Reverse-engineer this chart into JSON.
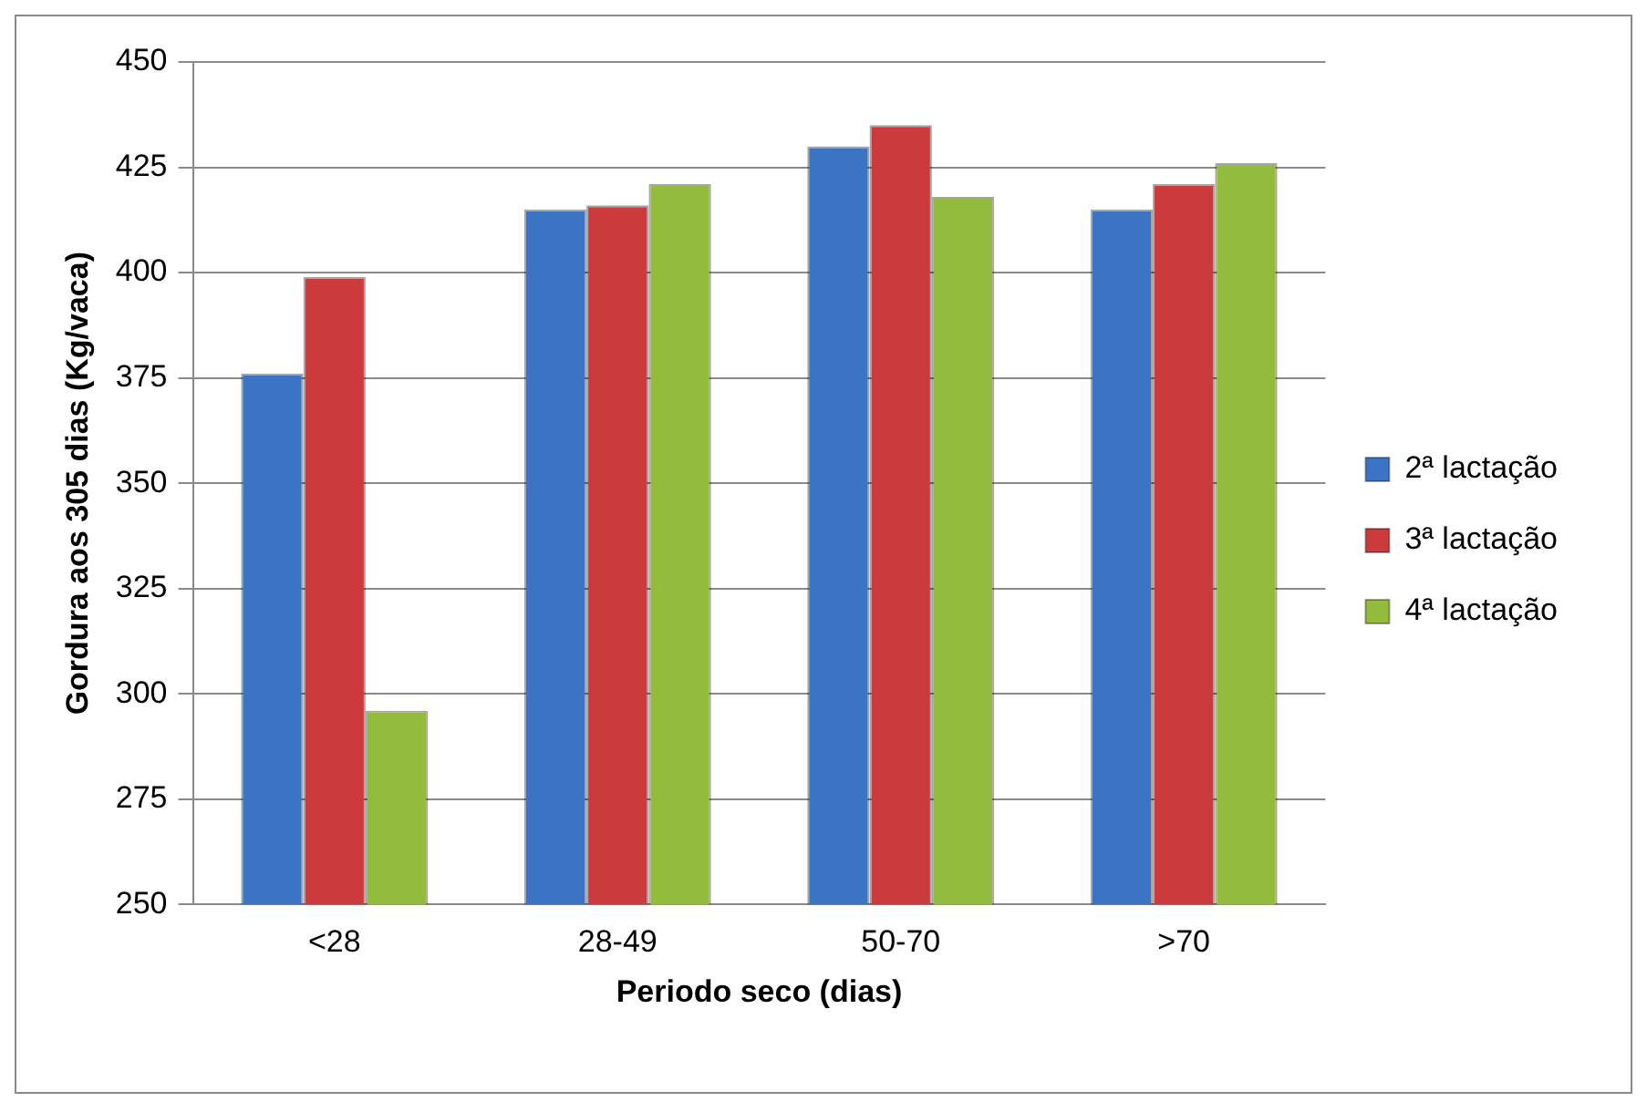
{
  "chart_data": {
    "type": "bar",
    "xlabel": "Periodo seco (dias)",
    "ylabel": "Gordura aos 305 dias (Kg/vaca)",
    "categories": [
      "<28",
      "28-49",
      "50-70",
      ">70"
    ],
    "series": [
      {
        "name": "2ª lactação",
        "color": "#3b74c4",
        "values": [
          376,
          415,
          430,
          415
        ]
      },
      {
        "name": "3ª lactação",
        "color": "#cc3b3b",
        "values": [
          399,
          416,
          435,
          421
        ]
      },
      {
        "name": "4ª lactação",
        "color": "#94bc3c",
        "values": [
          296,
          421,
          418,
          426
        ]
      }
    ],
    "ylim": [
      250,
      450
    ],
    "yticks": [
      250,
      275,
      300,
      325,
      350,
      375,
      400,
      425,
      450
    ],
    "grid": "y",
    "legend": "right"
  }
}
